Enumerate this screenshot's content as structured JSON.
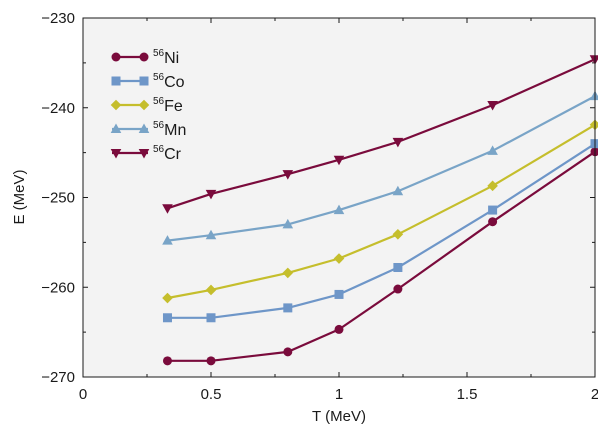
{
  "chart_data": {
    "type": "line",
    "title": "",
    "xlabel": "T (MeV)",
    "ylabel": "E (MeV)",
    "xlim": [
      0,
      2
    ],
    "ylim": [
      -270,
      -230
    ],
    "x_ticks": [
      0,
      0.5,
      1,
      1.5,
      2
    ],
    "x_tick_labels": [
      "0",
      "0.5",
      "1",
      "1.5",
      "2"
    ],
    "y_ticks": [
      -270,
      -260,
      -250,
      -240,
      -230
    ],
    "y_tick_labels": [
      "−270",
      "−260",
      "−250",
      "−240",
      "−230"
    ],
    "grid": false,
    "plot_background": "#f3f3f3",
    "legend_position": "top-left",
    "series": [
      {
        "name": "Ni",
        "mass_number": "56",
        "color": "#7a0b3c",
        "marker": "circle",
        "x": [
          0.33,
          0.5,
          0.8,
          1.0,
          1.23,
          1.6,
          2.0
        ],
        "y": [
          -268.2,
          -268.2,
          -267.2,
          -264.7,
          -260.2,
          -252.7,
          -244.9
        ]
      },
      {
        "name": "Co",
        "mass_number": "56",
        "color": "#6e96c8",
        "marker": "square",
        "x": [
          0.33,
          0.5,
          0.8,
          1.0,
          1.23,
          1.6,
          2.0
        ],
        "y": [
          -263.4,
          -263.4,
          -262.3,
          -260.8,
          -257.8,
          -251.4,
          -244.0
        ]
      },
      {
        "name": "Fe",
        "mass_number": "56",
        "color": "#c5be2c",
        "marker": "diamond",
        "x": [
          0.33,
          0.5,
          0.8,
          1.0,
          1.23,
          1.6,
          2.0
        ],
        "y": [
          -261.2,
          -260.3,
          -258.4,
          -256.8,
          -254.1,
          -248.7,
          -241.9
        ]
      },
      {
        "name": "Mn",
        "mass_number": "56",
        "color": "#79a4c7",
        "marker": "triangle-up",
        "x": [
          0.33,
          0.5,
          0.8,
          1.0,
          1.23,
          1.6,
          2.0
        ],
        "y": [
          -254.8,
          -254.2,
          -253.0,
          -251.4,
          -249.3,
          -244.8,
          -238.7
        ]
      },
      {
        "name": "Cr",
        "mass_number": "56",
        "color": "#7a0b3c",
        "marker": "triangle-down",
        "x": [
          0.33,
          0.5,
          0.8,
          1.0,
          1.23,
          1.6,
          2.0
        ],
        "y": [
          -251.2,
          -249.6,
          -247.4,
          -245.8,
          -243.8,
          -239.7,
          -234.6
        ]
      }
    ]
  }
}
